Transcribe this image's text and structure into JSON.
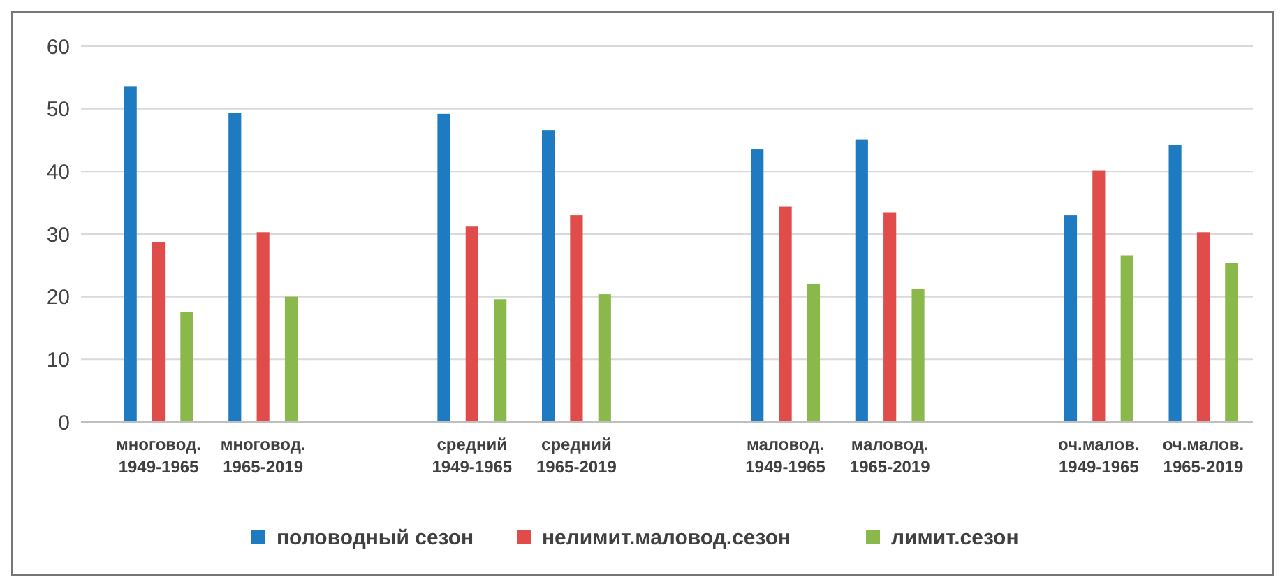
{
  "chart_data": {
    "type": "bar",
    "categories": [
      "многовод. 1949-1965",
      "многовод. 1965-2019",
      null,
      "средний 1949-1965",
      "средний 1965-2019",
      null,
      "маловод. 1949-1965",
      "маловод. 1965-2019",
      null,
      "оч.малов. 1949-1965",
      "оч.малов. 1965-2019"
    ],
    "series": [
      {
        "name": "половодный сезон",
        "color": "#1f7bc1",
        "values": [
          53.6,
          49.4,
          null,
          49.2,
          46.6,
          null,
          43.6,
          45.1,
          null,
          33.0,
          44.2
        ]
      },
      {
        "name": "нелимит.маловод.сезон",
        "color": "#e04c4a",
        "values": [
          28.7,
          30.3,
          null,
          31.2,
          33.0,
          null,
          34.4,
          33.4,
          null,
          40.2,
          30.3
        ]
      },
      {
        "name": "лимит.сезон",
        "color": "#8ab84a",
        "values": [
          17.6,
          20.0,
          null,
          19.6,
          20.4,
          null,
          22.0,
          21.3,
          null,
          26.6,
          25.4
        ]
      }
    ],
    "ylim": [
      0,
      60
    ],
    "yticks": [
      0,
      10,
      20,
      30,
      40,
      50,
      60
    ],
    "grid": "y",
    "legend": "bottom"
  }
}
